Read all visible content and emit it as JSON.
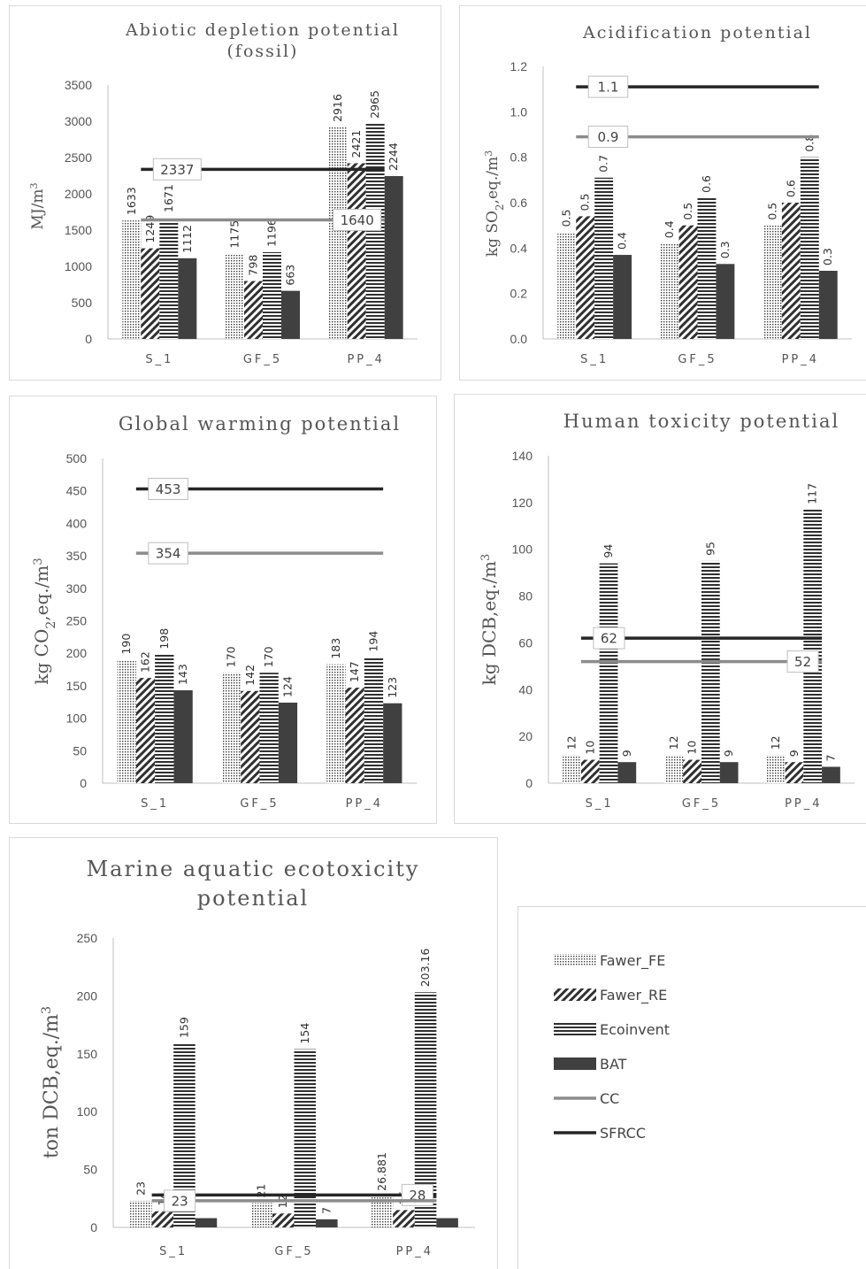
{
  "legend": {
    "items": [
      {
        "label": "Fawer_FE",
        "key": "fawer_fe"
      },
      {
        "label": "Fawer_RE",
        "key": "fawer_re"
      },
      {
        "label": "Ecoinvent",
        "key": "ecoinvent"
      },
      {
        "label": "BAT",
        "key": "bat"
      },
      {
        "label": "CC",
        "key": "cc"
      },
      {
        "label": "SFRCC",
        "key": "sfrcc"
      }
    ]
  },
  "colors": {
    "bat": "#404040",
    "cc": "#8c8c8c",
    "sfrcc": "#262626",
    "pattern": "#3a3a3a"
  },
  "chart_data": [
    {
      "type": "bar",
      "title": "Abiotic depletion potential (fossil)",
      "title_lines": [
        "Abiotic depletion potential",
        "(fossil)"
      ],
      "ylabel": "MJ/m³",
      "categories": [
        "S_1",
        "GF_5",
        "PP_4"
      ],
      "ylim": [
        0,
        3500
      ],
      "yticks": [
        "0",
        "500",
        "1000",
        "1500",
        "2000",
        "2500",
        "3000",
        "3500"
      ],
      "series": [
        {
          "name": "Fawer_FE",
          "values": [
            1633,
            1175,
            2916
          ],
          "labels": [
            "1633",
            "1175",
            "2916"
          ]
        },
        {
          "name": "Fawer_RE",
          "values": [
            1249,
            798,
            2421
          ],
          "labels": [
            "1249",
            "798",
            "2421"
          ]
        },
        {
          "name": "Ecoinvent",
          "values": [
            1671,
            1196,
            2965
          ],
          "labels": [
            "1671",
            "1196",
            "2965"
          ]
        },
        {
          "name": "BAT",
          "values": [
            1112,
            663,
            2244
          ],
          "labels": [
            "1112",
            "663",
            "2244"
          ]
        }
      ],
      "lines": [
        {
          "name": "SFRCC",
          "value": 2337,
          "label": "2337"
        },
        {
          "name": "CC",
          "value": 1640,
          "label": "1640"
        }
      ]
    },
    {
      "type": "bar",
      "title": "Acidification potential",
      "title_lines": [
        "Acidification potential"
      ],
      "ylabel": "kg SO₂,eq./m³",
      "categories": [
        "S_1",
        "GF_5",
        "PP_4"
      ],
      "ylim": [
        0,
        1.2
      ],
      "yticks": [
        "0.0",
        "0.2",
        "0.4",
        "0.6",
        "0.8",
        "1.0",
        "1.2"
      ],
      "series": [
        {
          "name": "Fawer_FE",
          "values": [
            0.47,
            0.42,
            0.5
          ],
          "labels": [
            "0.5",
            "0.4",
            "0.5"
          ]
        },
        {
          "name": "Fawer_RE",
          "values": [
            0.54,
            0.5,
            0.6
          ],
          "labels": [
            "0.5",
            "0.5",
            "0.6"
          ]
        },
        {
          "name": "Ecoinvent",
          "values": [
            0.71,
            0.62,
            0.8
          ],
          "labels": [
            "0.7",
            "0.6",
            "0.8"
          ]
        },
        {
          "name": "BAT",
          "values": [
            0.37,
            0.33,
            0.3
          ],
          "labels": [
            "0.4",
            "0.3",
            "0.3"
          ]
        }
      ],
      "lines": [
        {
          "name": "SFRCC",
          "value": 1.11,
          "label": "1.1"
        },
        {
          "name": "CC",
          "value": 0.89,
          "label": "0.9"
        }
      ]
    },
    {
      "type": "bar",
      "title": "Global warming potential",
      "title_lines": [
        "Global warming potential"
      ],
      "ylabel": "kg CO₂,eq./m³",
      "categories": [
        "S_1",
        "GF_5",
        "PP_4"
      ],
      "ylim": [
        0,
        500
      ],
      "yticks": [
        "0",
        "50",
        "100",
        "150",
        "200",
        "250",
        "300",
        "350",
        "400",
        "450",
        "500"
      ],
      "series": [
        {
          "name": "Fawer_FE",
          "values": [
            190,
            170,
            183
          ],
          "labels": [
            "190",
            "170",
            "183"
          ]
        },
        {
          "name": "Fawer_RE",
          "values": [
            162,
            142,
            147
          ],
          "labels": [
            "162",
            "142",
            "147"
          ]
        },
        {
          "name": "Ecoinvent",
          "values": [
            198,
            170,
            194
          ],
          "labels": [
            "198",
            "170",
            "194"
          ]
        },
        {
          "name": "BAT",
          "values": [
            143,
            124,
            123
          ],
          "labels": [
            "143",
            "124",
            "123"
          ]
        }
      ],
      "lines": [
        {
          "name": "SFRCC",
          "value": 453,
          "label": "453"
        },
        {
          "name": "CC",
          "value": 354,
          "label": "354"
        }
      ]
    },
    {
      "type": "bar",
      "title": "Human toxicity potential",
      "title_lines": [
        "Human toxicity potential"
      ],
      "ylabel": "kg DCB,eq./m³",
      "categories": [
        "S_1",
        "GF_5",
        "PP_4"
      ],
      "ylim": [
        0,
        140
      ],
      "yticks": [
        "0",
        "20",
        "40",
        "60",
        "80",
        "100",
        "120",
        "140"
      ],
      "series": [
        {
          "name": "Fawer_FE",
          "values": [
            12,
            12,
            12
          ],
          "labels": [
            "12",
            "12",
            "12"
          ]
        },
        {
          "name": "Fawer_RE",
          "values": [
            10,
            10,
            9
          ],
          "labels": [
            "10",
            "10",
            "9"
          ]
        },
        {
          "name": "Ecoinvent",
          "values": [
            94,
            95,
            117
          ],
          "labels": [
            "94",
            "95",
            "117"
          ]
        },
        {
          "name": "BAT",
          "values": [
            9,
            9,
            7
          ],
          "labels": [
            "9",
            "9",
            "7"
          ]
        }
      ],
      "lines": [
        {
          "name": "SFRCC",
          "value": 62,
          "label": "62"
        },
        {
          "name": "CC",
          "value": 52,
          "label": "52"
        }
      ]
    },
    {
      "type": "bar",
      "title": "Marine aquatic ecotoxicity potential",
      "title_lines": [
        "Marine aquatic ecotoxicity",
        "potential"
      ],
      "ylabel": "ton DCB,eq./m³",
      "categories": [
        "S_1",
        "GF_5",
        "PP_4"
      ],
      "ylim": [
        0,
        250
      ],
      "yticks": [
        "0",
        "50",
        "100",
        "150",
        "200",
        "250"
      ],
      "series": [
        {
          "name": "Fawer_FE",
          "values": [
            23,
            21,
            26.881
          ],
          "labels": [
            "23",
            "21",
            "26.881"
          ]
        },
        {
          "name": "Fawer_RE",
          "values": [
            14,
            12,
            15
          ],
          "labels": [
            "14",
            "12",
            "15"
          ]
        },
        {
          "name": "Ecoinvent",
          "values": [
            159,
            154,
            203.16
          ],
          "labels": [
            "159",
            "154",
            "203.16"
          ]
        },
        {
          "name": "BAT",
          "values": [
            8,
            7,
            8
          ],
          "labels": [
            "",
            "7",
            ""
          ]
        }
      ],
      "lines": [
        {
          "name": "SFRCC",
          "value": 28,
          "label": "28"
        },
        {
          "name": "CC",
          "value": 23,
          "label": "23"
        }
      ]
    }
  ]
}
